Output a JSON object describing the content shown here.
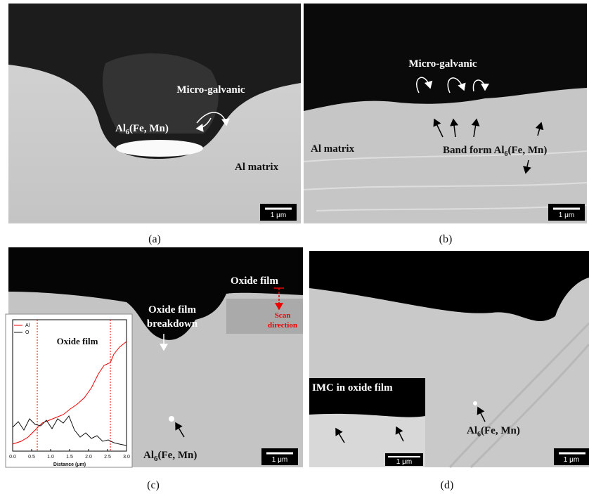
{
  "panels": [
    {
      "label": "(a)",
      "micro_galvanic": "Micro-galvanic",
      "particle": {
        "main": "Al",
        "sub": "6",
        "rest": "(Fe, Mn)"
      },
      "matrix": "Al matrix",
      "scale_bar": "1 μm"
    },
    {
      "label": "(b)",
      "micro_galvanic": "Micro-galvanic",
      "matrix": "Al matrix",
      "band": {
        "main": "Band form Al",
        "sub": "6",
        "rest": "(Fe, Mn)"
      },
      "scale_bar": "1 μm"
    },
    {
      "label": "(c)",
      "oxide_film": "Oxide film",
      "breakdown": [
        "Oxide film",
        "breakdown"
      ],
      "scan": [
        "Scan",
        "direction"
      ],
      "particle": {
        "main": "Al",
        "sub": "6",
        "rest": "(Fe, Mn)"
      },
      "scale_bar": "1 μm",
      "inset_chart": {
        "legend": [
          "Al",
          "O"
        ],
        "annotation": "Oxide film",
        "x_label": "Distance (μm)",
        "xlim": [
          0,
          3
        ],
        "xticks": [
          {
            "value": 0,
            "label": "0.0"
          },
          {
            "value": 0.5,
            "label": "0.5"
          },
          {
            "value": 1,
            "label": "1.0"
          },
          {
            "value": 1.5,
            "label": "1.5"
          },
          {
            "value": 2,
            "label": "2.0"
          },
          {
            "value": 2.5,
            "label": "2.5"
          },
          {
            "value": 3,
            "label": "3.0"
          }
        ]
      }
    },
    {
      "label": "(d)",
      "inset": "IMC in oxide film",
      "inset_scale_bar": "1 μm",
      "particle": {
        "main": "Al",
        "sub": "6",
        "rest": "(Fe, Mn)"
      },
      "scale_bar": "1 μm"
    }
  ]
}
